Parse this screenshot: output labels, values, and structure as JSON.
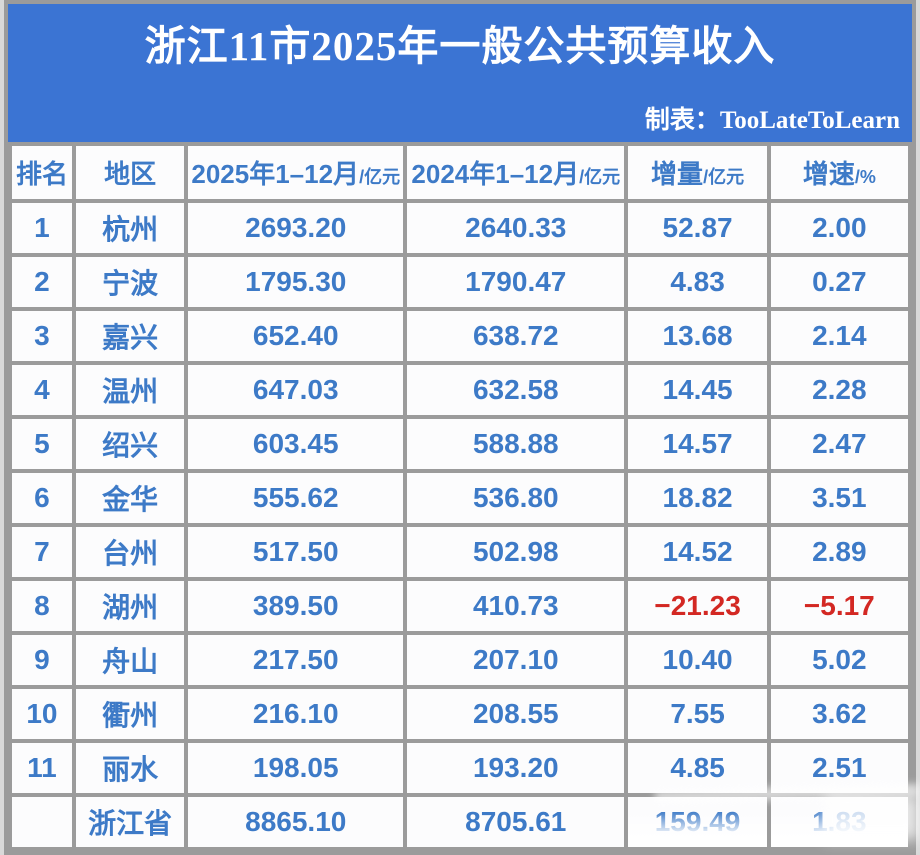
{
  "header": {
    "title": "浙江11市2025年一般公共预算收入",
    "credit": "制表：TooLateToLearn"
  },
  "table": {
    "columns": [
      {
        "label": "排名",
        "unit": ""
      },
      {
        "label": "地区",
        "unit": ""
      },
      {
        "label": "2025年1–12月",
        "unit": "/亿元"
      },
      {
        "label": "2024年1–12月",
        "unit": "/亿元"
      },
      {
        "label": "增量",
        "unit": "/亿元"
      },
      {
        "label": "增速",
        "unit": "/%"
      }
    ],
    "rows": [
      {
        "rank": "1",
        "region": "杭州",
        "v2025": "2693.20",
        "v2024": "2640.33",
        "delta": "52.87",
        "growth": "2.00",
        "negative_cols": [],
        "faded_cols": []
      },
      {
        "rank": "2",
        "region": "宁波",
        "v2025": "1795.30",
        "v2024": "1790.47",
        "delta": "4.83",
        "growth": "0.27",
        "negative_cols": [],
        "faded_cols": []
      },
      {
        "rank": "3",
        "region": "嘉兴",
        "v2025": "652.40",
        "v2024": "638.72",
        "delta": "13.68",
        "growth": "2.14",
        "negative_cols": [],
        "faded_cols": []
      },
      {
        "rank": "4",
        "region": "温州",
        "v2025": "647.03",
        "v2024": "632.58",
        "delta": "14.45",
        "growth": "2.28",
        "negative_cols": [],
        "faded_cols": []
      },
      {
        "rank": "5",
        "region": "绍兴",
        "v2025": "603.45",
        "v2024": "588.88",
        "delta": "14.57",
        "growth": "2.47",
        "negative_cols": [],
        "faded_cols": []
      },
      {
        "rank": "6",
        "region": "金华",
        "v2025": "555.62",
        "v2024": "536.80",
        "delta": "18.82",
        "growth": "3.51",
        "negative_cols": [],
        "faded_cols": []
      },
      {
        "rank": "7",
        "region": "台州",
        "v2025": "517.50",
        "v2024": "502.98",
        "delta": "14.52",
        "growth": "2.89",
        "negative_cols": [],
        "faded_cols": []
      },
      {
        "rank": "8",
        "region": "湖州",
        "v2025": "389.50",
        "v2024": "410.73",
        "delta": "−21.23",
        "growth": "−5.17",
        "negative_cols": [
          "delta",
          "growth"
        ],
        "faded_cols": []
      },
      {
        "rank": "9",
        "region": "舟山",
        "v2025": "217.50",
        "v2024": "207.10",
        "delta": "10.40",
        "growth": "5.02",
        "negative_cols": [],
        "faded_cols": []
      },
      {
        "rank": "10",
        "region": "衢州",
        "v2025": "216.10",
        "v2024": "208.55",
        "delta": "7.55",
        "growth": "3.62",
        "negative_cols": [],
        "faded_cols": []
      },
      {
        "rank": "11",
        "region": "丽水",
        "v2025": "198.05",
        "v2024": "193.20",
        "delta": "4.85",
        "growth": "2.51",
        "negative_cols": [],
        "faded_cols": []
      },
      {
        "rank": "",
        "region": "浙江省",
        "v2025": "8865.10",
        "v2024": "8705.61",
        "delta": "159.49",
        "growth": "1.83",
        "negative_cols": [],
        "faded_cols": [
          "delta",
          "growth"
        ]
      }
    ]
  },
  "colors": {
    "banner_bg": "#3b74d3",
    "cell_text": "#3d7ac7",
    "negative_text": "#d32823",
    "border": "#9b9b9b",
    "title_text": "#ffffff"
  }
}
